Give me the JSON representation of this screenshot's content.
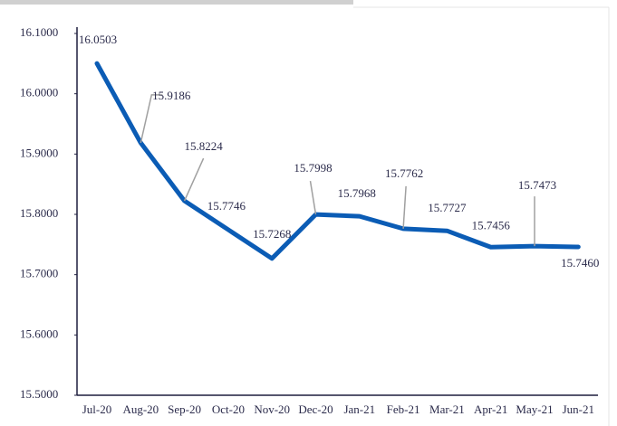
{
  "chart_data": {
    "type": "line",
    "categories": [
      "Jul-20",
      "Aug-20",
      "Sep-20",
      "Oct-20",
      "Nov-20",
      "Dec-20",
      "Jan-21",
      "Feb-21",
      "Mar-21",
      "Apr-21",
      "May-21",
      "Jun-21"
    ],
    "series": [
      {
        "color": "#0b5cb5",
        "values": [
          16.0503,
          15.9186,
          15.8224,
          15.7746,
          15.7268,
          15.7998,
          15.7968,
          15.7762,
          15.7727,
          15.7456,
          15.7473,
          15.746
        ],
        "value_labels": [
          "16.0503",
          "15.9186",
          "15.8224",
          "15.7746",
          "15.7268",
          "15.7998",
          "15.7968",
          "15.7762",
          "15.7727",
          "15.7456",
          "15.7473",
          "15.7460"
        ]
      }
    ],
    "ylim": [
      15.5,
      16.1
    ],
    "yticks": [
      {
        "value": 15.5,
        "label": "15.5000"
      },
      {
        "value": 15.6,
        "label": "15.6000"
      },
      {
        "value": 15.7,
        "label": "15.7000"
      },
      {
        "value": 15.8,
        "label": "15.8000"
      },
      {
        "value": 15.9,
        "label": "15.9000"
      },
      {
        "value": 16.0,
        "label": "16.0000"
      },
      {
        "value": 16.1,
        "label": "16.1000"
      }
    ]
  }
}
